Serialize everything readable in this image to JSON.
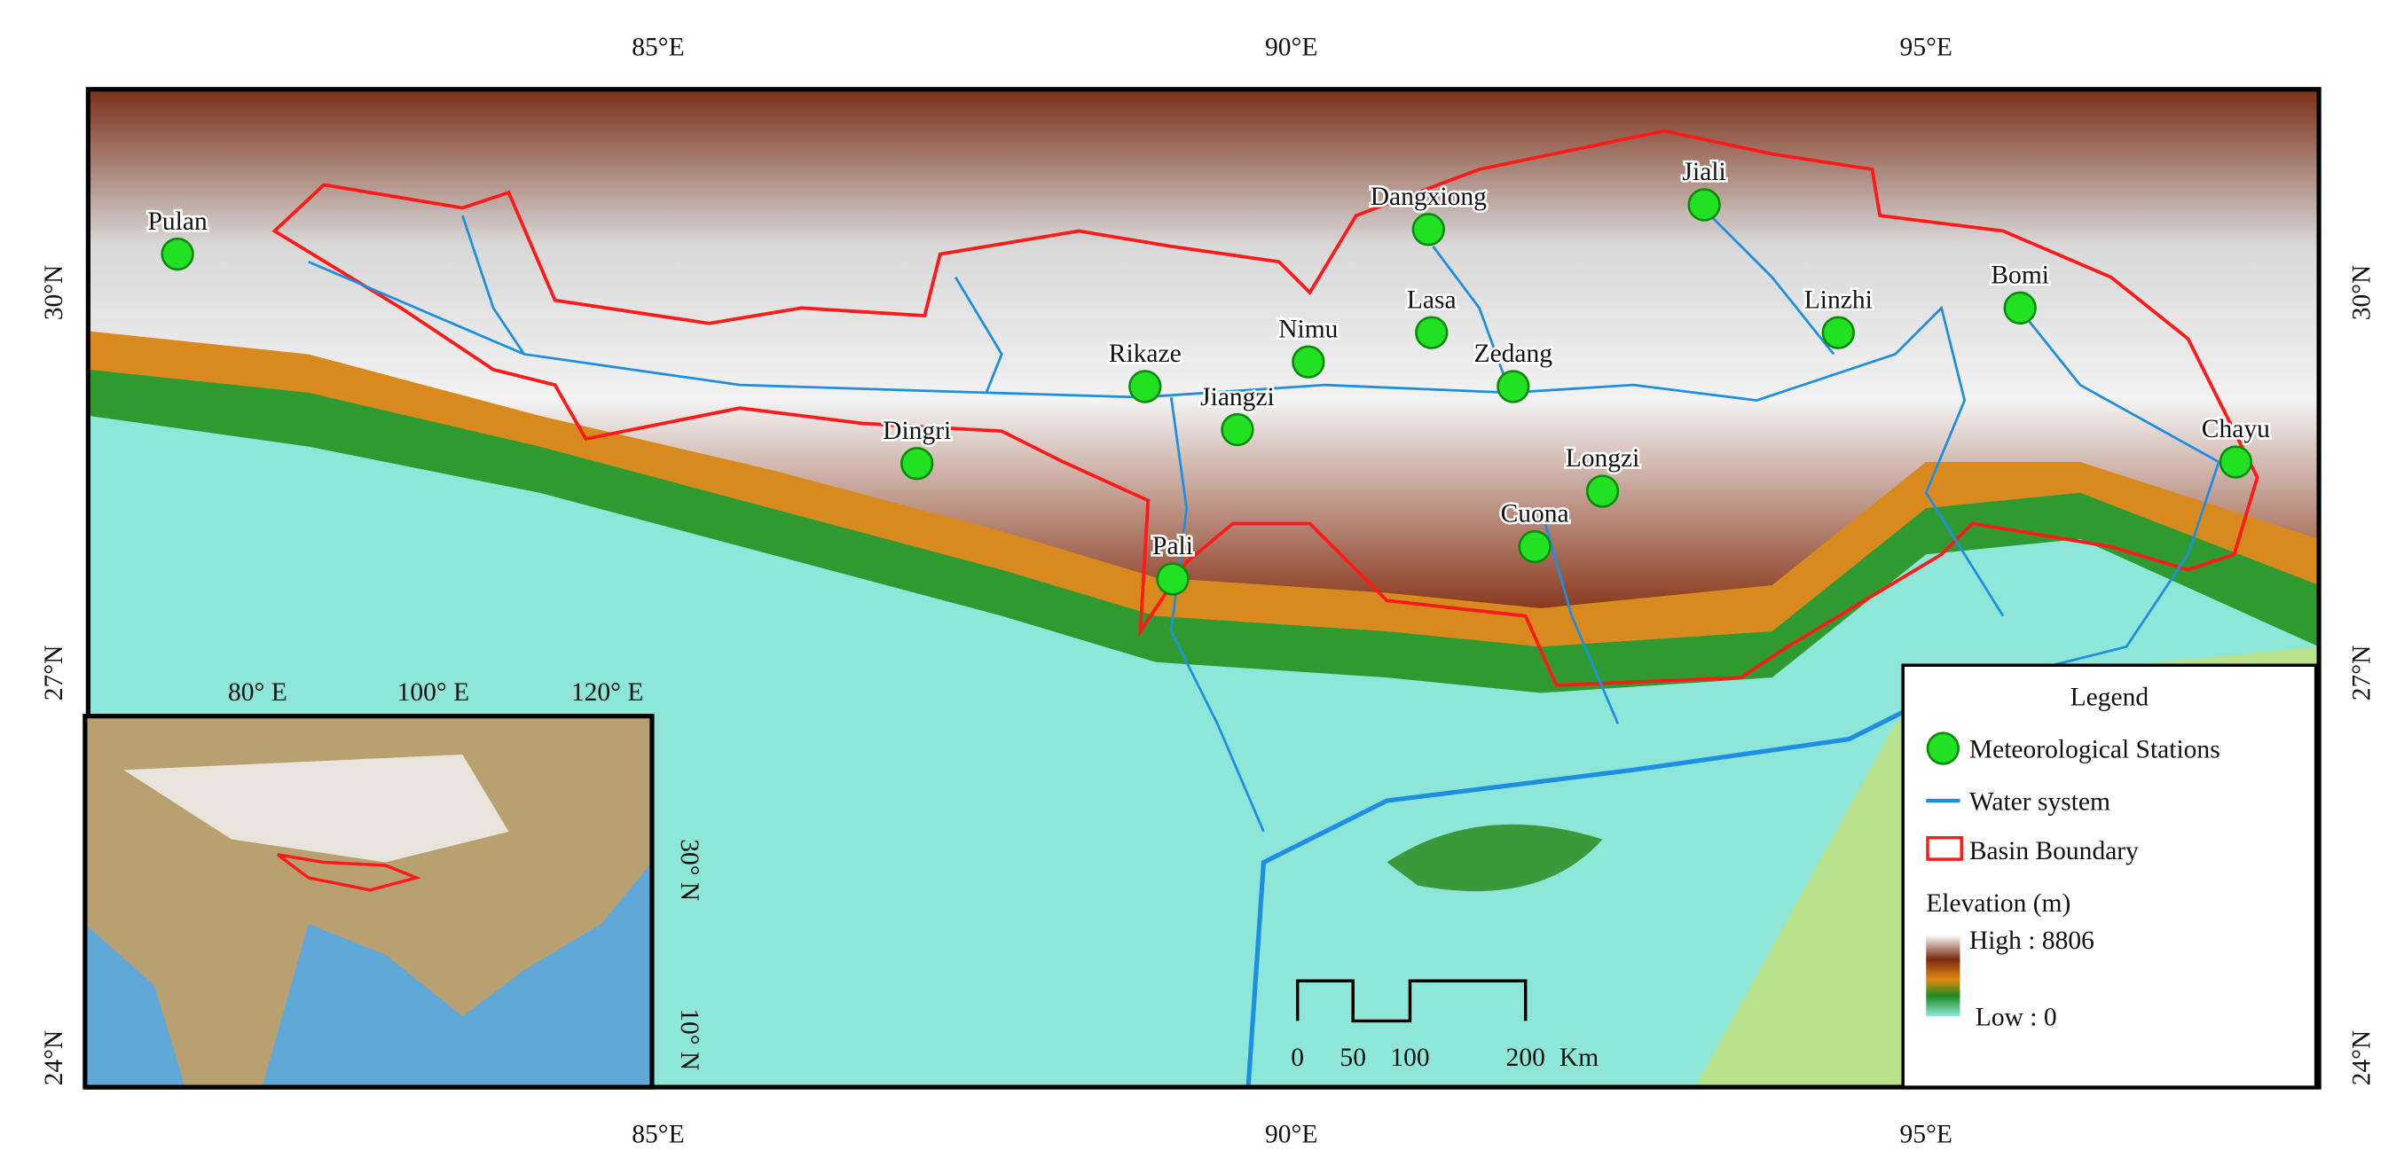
{
  "map": {
    "x_ticks": [
      "85°E",
      "90°E",
      "95°E"
    ],
    "y_ticks": [
      "30°N",
      "27°N",
      "24°N"
    ],
    "stations": [
      "Pulan",
      "Dangxiong",
      "Jiali",
      "Bomi",
      "Linzhi",
      "Lasa",
      "Nimu",
      "Zedang",
      "Rikaze",
      "Jiangzi",
      "Dingri",
      "Chayu",
      "Longzi",
      "Cuona",
      "Pali"
    ],
    "inset": {
      "x_ticks": [
        "80° E",
        "100° E",
        "120° E"
      ],
      "y_ticks": [
        "30° N",
        "10° N"
      ]
    },
    "scale_bar": {
      "labels": [
        "0",
        "50",
        "100",
        "200"
      ],
      "unit": "Km"
    },
    "legend": {
      "title": "Legend",
      "items": [
        "Meteorological Stations",
        "Water system",
        "Basin Boundary"
      ],
      "elevation_title": "Elevation (m)",
      "high": "High : 8806",
      "low": "Low : 0"
    }
  }
}
